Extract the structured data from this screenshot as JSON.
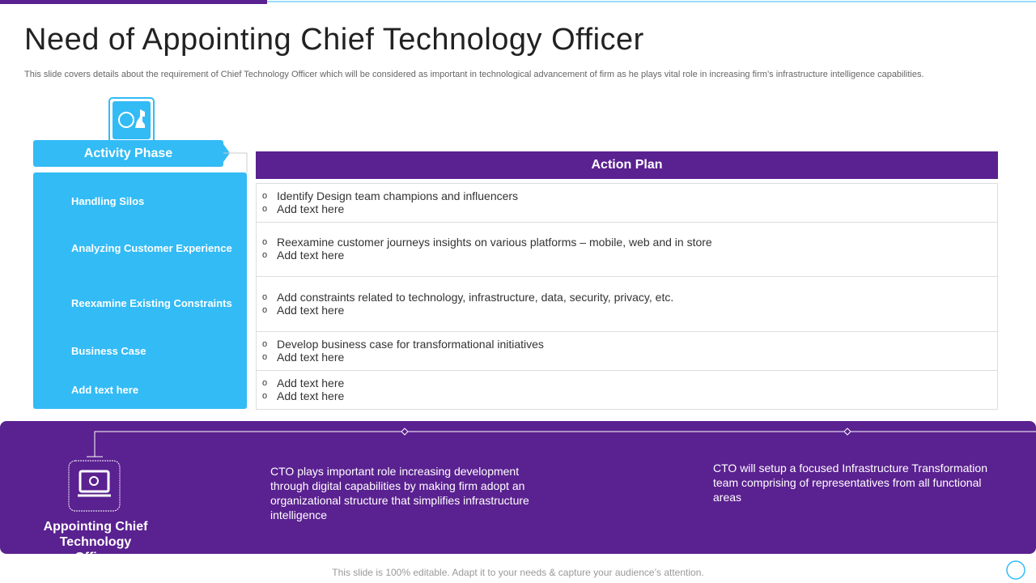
{
  "header": {
    "title": "Need of Appointing Chief Technology Officer",
    "subtitle": "This slide covers details about the requirement of Chief Technology Officer which will be considered as important in technological advancement of firm as he plays vital role in increasing firm’s infrastructure intelligence capabilities."
  },
  "activity_phase": {
    "header": "Activity Phase",
    "items": [
      "Handling Silos",
      "Analyzing Customer Experience",
      "Reexamine Existing Constraints",
      "Business  Case",
      "Add text here"
    ]
  },
  "action_plan": {
    "header": "Action Plan",
    "rows": [
      [
        "Identify Design team champions and influencers",
        "Add text here"
      ],
      [
        "Reexamine customer journeys insights on various platforms – mobile, web and in store",
        "Add text here"
      ],
      [
        "Add constraints related to technology, infrastructure, data, security, privacy, etc.",
        "Add text here"
      ],
      [
        "Develop business case for transformational initiatives",
        "Add text here"
      ],
      [
        "Add text here",
        "Add text here"
      ]
    ]
  },
  "bottom": {
    "label": "Appointing Chief Technology Officer",
    "texts": [
      "CTO plays important role increasing development through digital capabilities by making firm adopt an organizational structure that simplifies infrastructure intelligence",
      "CTO will setup a focused Infrastructure Transformation team comprising of representatives from all functional areas"
    ]
  },
  "footer": "This slide is 100% editable. Adapt it to your needs & capture your audience’s attention."
}
